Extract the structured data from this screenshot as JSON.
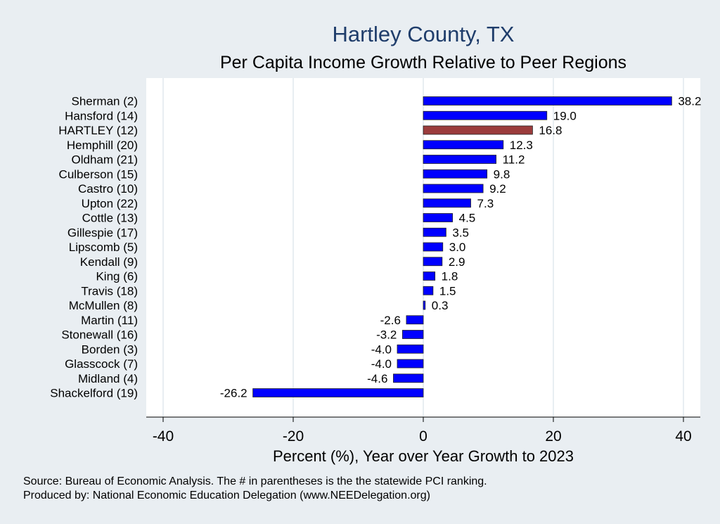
{
  "chart_data": {
    "type": "bar",
    "orientation": "horizontal",
    "title": "Hartley County, TX",
    "subtitle": "Per Capita Income Growth Relative to Peer Regions",
    "xlabel": "Percent (%), Year over Year Growth to 2023",
    "ylabel": "",
    "xlim": [
      -40,
      40
    ],
    "xticks": [
      "-40",
      "-20",
      "0",
      "20",
      "40"
    ],
    "xtick_values": [
      -40,
      -20,
      0,
      20,
      40
    ],
    "grid": "vertical",
    "highlight_color": "#9b3c3c",
    "bar_color": "#0000ff",
    "categories": [
      "Sherman  (2)",
      "Hansford (14)",
      "HARTLEY (12)",
      "Hemphill (20)",
      "Oldham (21)",
      "Culberson (15)",
      "Castro (10)",
      "Upton (22)",
      "Cottle (13)",
      "Gillespie (17)",
      "Lipscomb  (5)",
      "Kendall  (9)",
      "King  (6)",
      "Travis (18)",
      "McMullen  (8)",
      "Martin (11)",
      "Stonewall (16)",
      "Borden  (3)",
      "Glasscock  (7)",
      "Midland  (4)",
      "Shackelford (19)"
    ],
    "values": [
      38.2,
      19.0,
      16.8,
      12.3,
      11.2,
      9.8,
      9.2,
      7.3,
      4.5,
      3.5,
      3.0,
      2.9,
      1.8,
      1.5,
      0.3,
      -2.6,
      -3.2,
      -4.0,
      -4.0,
      -4.6,
      -26.2
    ],
    "value_labels": [
      "38.2",
      "19.0",
      "16.8",
      "12.3",
      "11.2",
      "9.8",
      "9.2",
      "7.3",
      "4.5",
      "3.5",
      "3.0",
      "2.9",
      "1.8",
      "1.5",
      "0.3",
      "-2.6",
      "-3.2",
      "-4.0",
      "-4.0",
      "-4.6",
      "-26.2"
    ],
    "highlight_index": 2
  },
  "notes": {
    "source": "Source: Bureau of Economic Analysis. The # in parentheses is the the statewide PCI ranking.",
    "produced_by": "Produced by: National Economic Education Delegation (www.NEEDelegation.org)"
  }
}
